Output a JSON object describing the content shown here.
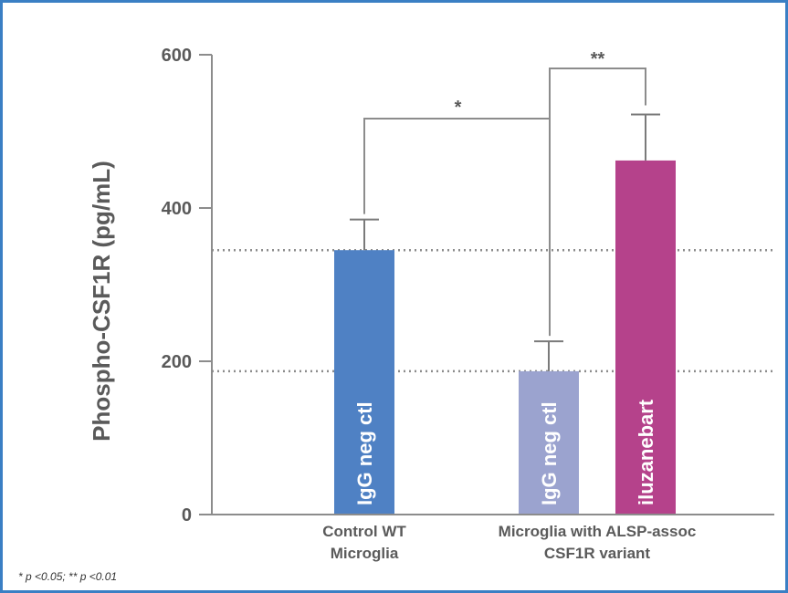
{
  "chart_data": {
    "type": "bar",
    "ylabel": "Phospho-CSF1R (pg/mL)",
    "xlabel": "",
    "ylim": [
      0,
      600
    ],
    "yticks": [
      0,
      200,
      400,
      600
    ],
    "groups": [
      {
        "label_lines": [
          "Control WT",
          "Microglia"
        ]
      },
      {
        "label_lines": [
          "Microglia with ALSP-assoc",
          "CSF1R variant"
        ]
      }
    ],
    "bars": [
      {
        "label": "IgG neg ctl",
        "group": 0,
        "value": 345,
        "error_upper": 385,
        "color": "#4f81c4"
      },
      {
        "label": "IgG neg ctl",
        "group": 1,
        "value": 187,
        "error_upper": 226,
        "color": "#9ba3cf"
      },
      {
        "label": "iluzanebart",
        "group": 1,
        "value": 462,
        "error_upper": 522,
        "color": "#b5428b"
      }
    ],
    "reference_lines": [
      345,
      187
    ],
    "significance": [
      {
        "label": "*",
        "between": [
          "Control WT IgG neg ctl",
          "ALSP-assoc group"
        ]
      },
      {
        "label": "**",
        "between": [
          "ALSP-assoc IgG neg ctl",
          "iluzanebart"
        ]
      }
    ],
    "footnote": "* p <0.05; ** p <0.01",
    "grid": false,
    "legend": "none"
  },
  "colors": {
    "frame": "#3a7fc4",
    "axis": "#8c8c8c",
    "text": "#5a5a5a"
  }
}
